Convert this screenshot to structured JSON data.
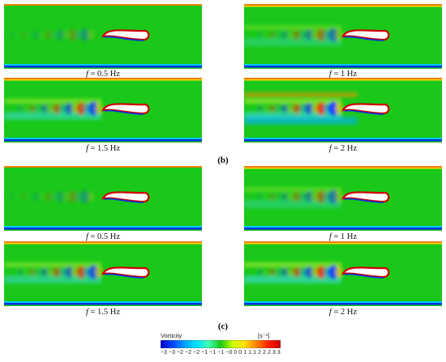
{
  "panels": [
    {
      "id": "p1",
      "caption_f": "f",
      "caption_rest": " = 0.5 Hz",
      "strength": 0.25,
      "stripes": 0
    },
    {
      "id": "p2",
      "caption_f": "f",
      "caption_rest": " = 1 Hz",
      "strength": 0.55,
      "stripes": 1
    },
    {
      "id": "p3",
      "caption_f": "f",
      "caption_rest": " = 1.5 Hz",
      "strength": 0.85,
      "stripes": 1
    },
    {
      "id": "p4",
      "caption_f": "f",
      "caption_rest": " = 2 Hz",
      "strength": 1.0,
      "stripes": 2
    },
    {
      "id": "p5",
      "caption_f": "f",
      "caption_rest": " = 0.5 Hz",
      "strength": 0.25,
      "stripes": 0
    },
    {
      "id": "p6",
      "caption_f": "f",
      "caption_rest": " = 1 Hz",
      "strength": 0.55,
      "stripes": 1
    },
    {
      "id": "p7",
      "caption_f": "f",
      "caption_rest": " = 1.5 Hz",
      "strength": 0.8,
      "stripes": 1
    },
    {
      "id": "p8",
      "caption_f": "f",
      "caption_rest": " = 2 Hz",
      "strength": 0.95,
      "stripes": 1
    }
  ],
  "section_labels": [
    "(b)",
    "(c)"
  ],
  "colorbar": {
    "title": "Vorticity",
    "unit": "[s⁻¹]",
    "ticks": [
      "−3",
      "−3",
      "−2",
      "−2",
      "−2",
      "−1",
      "−1",
      "−1",
      "−0",
      "0",
      "0",
      "1",
      "1",
      "1",
      "2",
      "2",
      "2",
      "3",
      "3"
    ],
    "colors": [
      "#0000c8",
      "#0044ff",
      "#00a0ff",
      "#00e0ff",
      "#40ffb0",
      "#19c819",
      "#c8ff00",
      "#ffe000",
      "#ff8000",
      "#ff2000",
      "#c80000"
    ],
    "field_color": "#19c819"
  }
}
